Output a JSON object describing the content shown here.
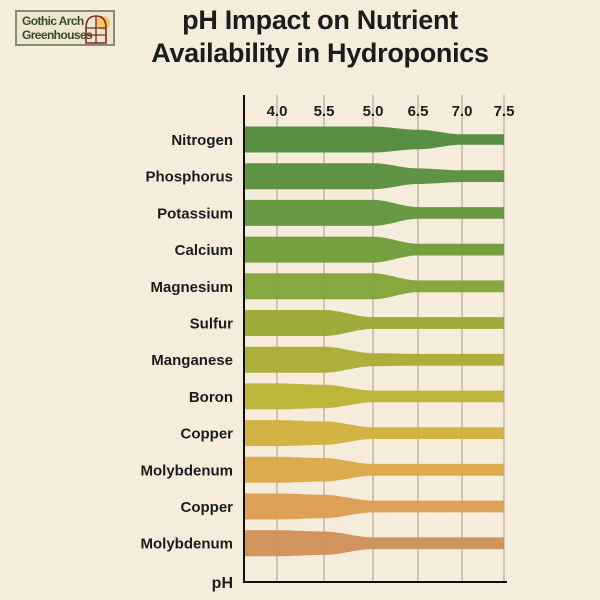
{
  "logo": {
    "line1": "Gothic Arch",
    "line2": "Greenhouses"
  },
  "chart_data": {
    "type": "area",
    "title_line1": "pH Impact on Nutrient",
    "title_line2": "Availability in Hydroponics",
    "xlabel": "pH",
    "x_tick_labels": [
      "4.0",
      "5.5",
      "5.0",
      "6.5",
      "7.0",
      "7.5"
    ],
    "grid": true,
    "series": [
      {
        "name": "Nitrogen",
        "color": "#4f8a3a",
        "values": [
          1,
          1,
          1,
          0.75,
          0.4,
          0.4
        ]
      },
      {
        "name": "Phosphorus",
        "color": "#558f3b",
        "values": [
          1,
          1,
          1,
          0.6,
          0.45,
          0.45
        ]
      },
      {
        "name": "Potassium",
        "color": "#5f963a",
        "values": [
          1,
          1,
          1,
          0.45,
          0.45,
          0.45
        ]
      },
      {
        "name": "Calcium",
        "color": "#6e9c38",
        "values": [
          1,
          1,
          1,
          0.45,
          0.45,
          0.45
        ]
      },
      {
        "name": "Magnesium",
        "color": "#80a436",
        "values": [
          1,
          1,
          1,
          0.45,
          0.45,
          0.45
        ]
      },
      {
        "name": "Sulfur",
        "color": "#9aa833",
        "values": [
          1,
          1,
          0.45,
          0.45,
          0.45,
          0.45
        ]
      },
      {
        "name": "Manganese",
        "color": "#a8ad31",
        "values": [
          1,
          1,
          0.5,
          0.45,
          0.45,
          0.45
        ]
      },
      {
        "name": "Boron",
        "color": "#bab233",
        "values": [
          1,
          0.9,
          0.45,
          0.45,
          0.45,
          0.45
        ]
      },
      {
        "name": "Copper",
        "color": "#d0b03b",
        "values": [
          1,
          0.9,
          0.45,
          0.45,
          0.45,
          0.45
        ]
      },
      {
        "name": "Molybdenum",
        "color": "#daa846",
        "values": [
          1,
          0.9,
          0.45,
          0.45,
          0.45,
          0.45
        ]
      },
      {
        "name": "Copper",
        "color": "#da9c50",
        "values": [
          1,
          0.9,
          0.45,
          0.45,
          0.45,
          0.45
        ]
      },
      {
        "name": "Molybdenum",
        "color": "#cf8f56",
        "values": [
          1,
          0.9,
          0.45,
          0.45,
          0.45,
          0.45
        ]
      }
    ]
  }
}
